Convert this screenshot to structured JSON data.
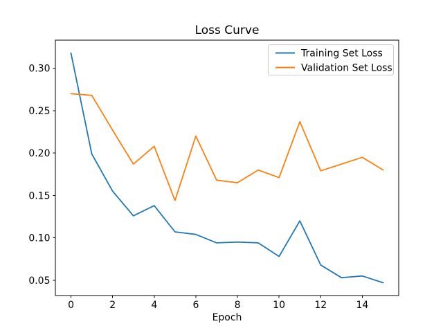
{
  "figure": {
    "background": "#ffffff",
    "text_color": "#000000",
    "spine_color": "#000000"
  },
  "chart_data": {
    "type": "line",
    "title": "Loss Curve",
    "xlabel": "Epoch",
    "ylabel": "",
    "x": [
      0,
      1,
      2,
      3,
      4,
      5,
      6,
      7,
      8,
      9,
      10,
      11,
      12,
      13,
      14,
      15
    ],
    "series": [
      {
        "name": "Training Set Loss",
        "color": "#1f77b4",
        "values": [
          0.318,
          0.199,
          0.155,
          0.126,
          0.138,
          0.107,
          0.104,
          0.094,
          0.095,
          0.094,
          0.078,
          0.12,
          0.068,
          0.053,
          0.055,
          0.047
        ]
      },
      {
        "name": "Validation Set Loss",
        "color": "#ff7f0e",
        "values": [
          0.27,
          0.268,
          0.227,
          0.187,
          0.208,
          0.144,
          0.22,
          0.168,
          0.165,
          0.18,
          0.171,
          0.237,
          0.179,
          0.187,
          0.195,
          0.18
        ]
      }
    ],
    "xticks": [
      0,
      2,
      4,
      6,
      8,
      10,
      12,
      14
    ],
    "yticks": [
      0.05,
      0.1,
      0.15,
      0.2,
      0.25,
      0.3
    ],
    "xlim": [
      -0.75,
      15.75
    ],
    "ylim": [
      0.0319,
      0.3332
    ],
    "grid": false,
    "legend": {
      "position": "upper-right",
      "border_color": "#cccccc",
      "background": "#ffffff"
    }
  }
}
